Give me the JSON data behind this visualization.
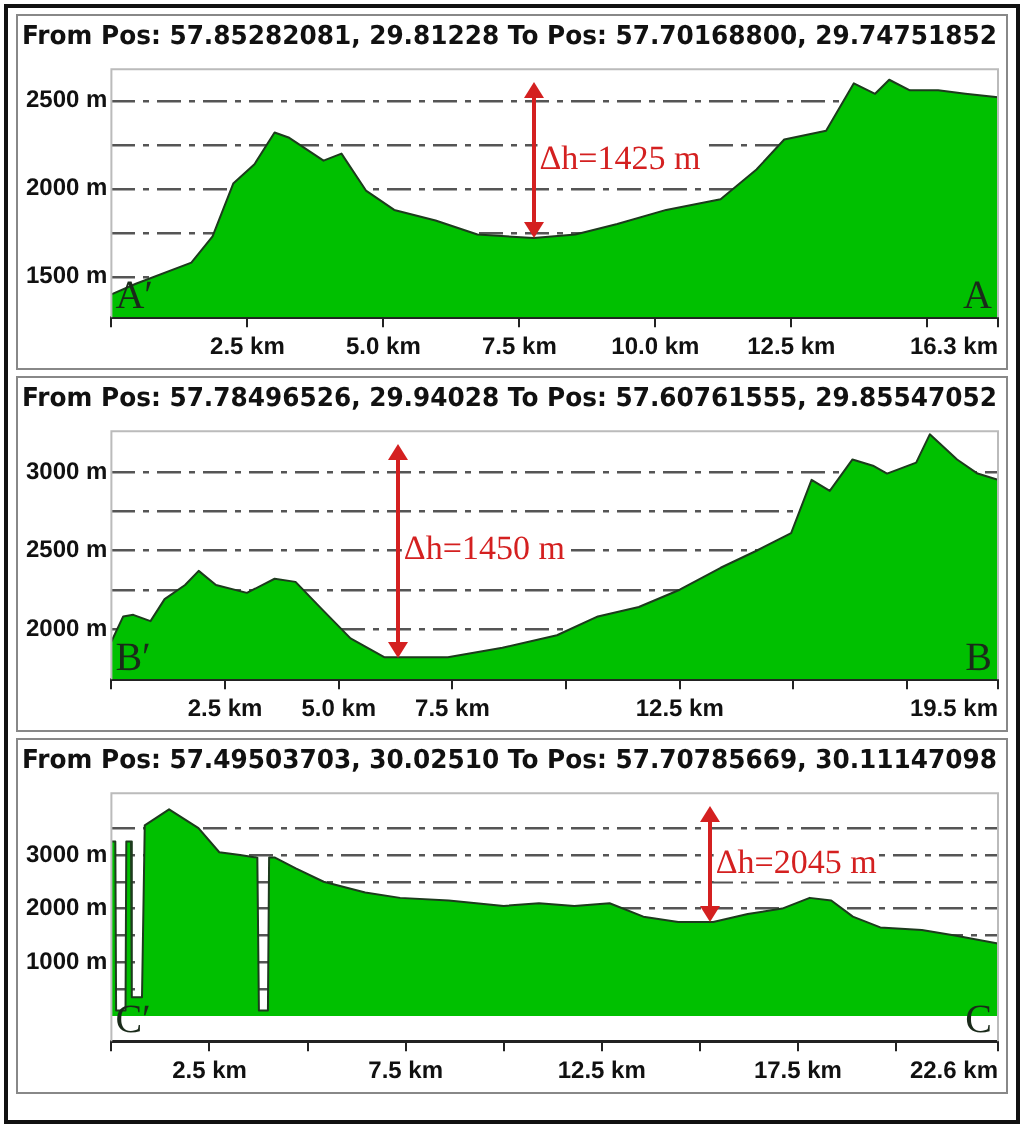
{
  "chart_data": [
    {
      "type": "area",
      "title": "From Pos: 57.85282081, 29.81228 To Pos: 57.70168800, 29.74751852",
      "legend": false,
      "grid": "y",
      "line_style": "solid",
      "marker": "none",
      "x": [
        0,
        0.45,
        1.47,
        1.86,
        2.24,
        2.63,
        3.0,
        3.27,
        3.9,
        4.23,
        4.68,
        5.2,
        5.96,
        6.73,
        7.76,
        8.53,
        9.3,
        10.2,
        11.2,
        11.86,
        12.37,
        13.14,
        13.65,
        14.04,
        14.3,
        14.68,
        15.2,
        15.7,
        16.3
      ],
      "series": [
        {
          "color": "#00c000",
          "values": [
            1400,
            1460,
            1580,
            1730,
            2030,
            2140,
            2320,
            2290,
            2160,
            2200,
            1990,
            1880,
            1820,
            1740,
            1720,
            1740,
            1800,
            1880,
            1940,
            2110,
            2280,
            2330,
            2600,
            2540,
            2620,
            2560,
            2560,
            2540,
            2520
          ]
        }
      ],
      "xlim": [
        0,
        16.3
      ],
      "xticks": [
        {
          "value": 0,
          "label": null
        },
        {
          "value": 2.5,
          "label": "2.5 km"
        },
        {
          "value": 5,
          "label": "5.0 km"
        },
        {
          "value": 7.5,
          "label": "7.5 km"
        },
        {
          "value": 10,
          "label": "10.0 km"
        },
        {
          "value": 12.5,
          "label": "12.5 km"
        },
        {
          "value": 15,
          "label": null
        },
        {
          "value": 16.3,
          "label": "16.3 km"
        }
      ],
      "ylim": [
        1270,
        2680
      ],
      "yticks": [
        {
          "value": 1500,
          "label": "1500 m"
        },
        {
          "value": 1750,
          "label": null
        },
        {
          "value": 2000,
          "label": "2000 m"
        },
        {
          "value": 2250,
          "label": null
        },
        {
          "value": 2500,
          "label": "2500 m"
        }
      ],
      "annotations": [
        "A′",
        "A",
        {
          "text": "Δh=1425 m",
          "x": 7.76,
          "y": 1720
        }
      ]
    },
    {
      "type": "area",
      "title": "From Pos: 57.78496526, 29.94028 To Pos: 57.60761555, 29.85547052",
      "legend": false,
      "grid": "y",
      "line_style": "solid",
      "marker": "none",
      "x": [
        0,
        0.26,
        0.48,
        0.86,
        1.17,
        1.62,
        1.92,
        2.3,
        2.98,
        3.59,
        4.05,
        4.65,
        5.26,
        6.0,
        7.4,
        8.6,
        9.8,
        10.7,
        11.6,
        12.5,
        13.4,
        14.2,
        14.95,
        15.4,
        15.8,
        16.3,
        16.75,
        17.06,
        17.7,
        18.0,
        18.6,
        19.05,
        19.5
      ],
      "series": [
        {
          "color": "#00c000",
          "values": [
            1920,
            2080,
            2090,
            2050,
            2190,
            2280,
            2370,
            2280,
            2230,
            2320,
            2300,
            2120,
            1940,
            1820,
            1820,
            1880,
            1960,
            2080,
            2140,
            2250,
            2390,
            2500,
            2610,
            2950,
            2880,
            3080,
            3040,
            2990,
            3060,
            3240,
            3080,
            2990,
            2950
          ]
        }
      ],
      "xlim": [
        0,
        19.5
      ],
      "xticks": [
        {
          "value": 0,
          "label": null
        },
        {
          "value": 2.5,
          "label": "2.5 km"
        },
        {
          "value": 5,
          "label": "5.0 km"
        },
        {
          "value": 7.5,
          "label": "7.5 km"
        },
        {
          "value": 10,
          "label": null
        },
        {
          "value": 12.5,
          "label": "12.5 km"
        },
        {
          "value": 15,
          "label": null
        },
        {
          "value": 17.5,
          "label": null
        },
        {
          "value": 19.5,
          "label": "19.5 km"
        }
      ],
      "ylim": [
        1680,
        3260
      ],
      "yticks": [
        {
          "value": 2000,
          "label": "2000 m"
        },
        {
          "value": 2250,
          "label": null
        },
        {
          "value": 2500,
          "label": "2500 m"
        },
        {
          "value": 2750,
          "label": null
        },
        {
          "value": 3000,
          "label": "3000 m"
        }
      ],
      "annotations": [
        "B′",
        "B",
        {
          "text": "Δh=1450 m",
          "x": 6.3,
          "y": 1820
        }
      ]
    },
    {
      "type": "area",
      "title": "From Pos: 57.49503703, 30.02510 To Pos: 57.70785669, 30.11147098",
      "legend": false,
      "grid": "y",
      "line_style": "solid",
      "marker": "none",
      "x": [
        0,
        0.1,
        0.12,
        0.36,
        0.38,
        0.5,
        0.52,
        0.78,
        0.85,
        1.47,
        2.22,
        2.75,
        3.28,
        3.72,
        3.76,
        3.99,
        4.02,
        4.17,
        4.7,
        5.41,
        6.47,
        7.36,
        8.6,
        10.0,
        10.9,
        11.8,
        12.7,
        13.56,
        14.45,
        15.34,
        16.22,
        17.1,
        17.8,
        18.35,
        18.9,
        19.6,
        20.66,
        21.5,
        22.6
      ],
      "series": [
        {
          "color": "#00c000",
          "values": [
            3250,
            3250,
            100,
            100,
            3250,
            3250,
            350,
            350,
            3550,
            3850,
            3500,
            3050,
            3000,
            2950,
            100,
            100,
            2950,
            2950,
            2750,
            2500,
            2300,
            2200,
            2150,
            2050,
            2100,
            2050,
            2100,
            1850,
            1750,
            1750,
            1900,
            2000,
            2200,
            2150,
            1850,
            1650,
            1600,
            1500,
            1350
          ]
        }
      ],
      "xlim": [
        0,
        22.6
      ],
      "xticks": [
        {
          "value": 0,
          "label": null
        },
        {
          "value": 2.5,
          "label": "2.5 km"
        },
        {
          "value": 5,
          "label": null
        },
        {
          "value": 7.5,
          "label": "7.5 km"
        },
        {
          "value": 10,
          "label": null
        },
        {
          "value": 12.5,
          "label": "12.5 km"
        },
        {
          "value": 15,
          "label": null
        },
        {
          "value": 17.5,
          "label": "17.5 km"
        },
        {
          "value": 20,
          "label": null
        },
        {
          "value": 22.6,
          "label": "22.6 km"
        }
      ],
      "ylim": [
        -470,
        4150
      ],
      "yticks": [
        {
          "value": 500,
          "label": null
        },
        {
          "value": 1000,
          "label": "1000 m"
        },
        {
          "value": 1500,
          "label": null
        },
        {
          "value": 2000,
          "label": "2000 m"
        },
        {
          "value": 2500,
          "label": null
        },
        {
          "value": 3000,
          "label": "3000 m"
        },
        {
          "value": 3500,
          "label": null
        }
      ],
      "annotations": [
        "C′",
        "C",
        {
          "text": "Δh=2045 m",
          "x": 15.25,
          "y": 1750
        }
      ]
    }
  ]
}
